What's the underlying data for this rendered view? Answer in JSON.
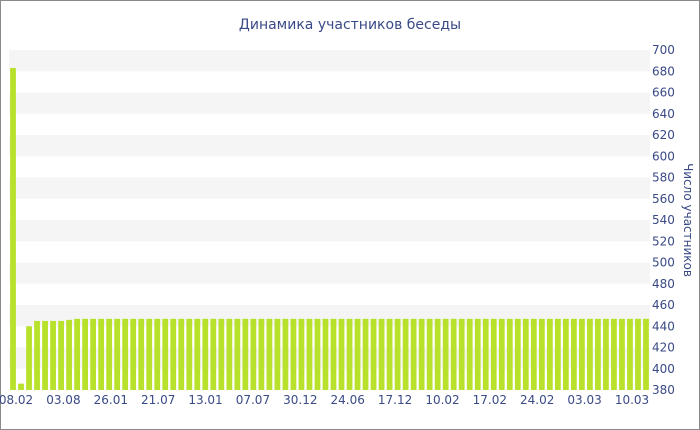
{
  "chart_data": {
    "type": "bar",
    "title": "Динамика участников беседы",
    "xlabel": "",
    "ylabel": "Число участников",
    "ylim": [
      380,
      700
    ],
    "yticks": [
      380,
      400,
      420,
      440,
      460,
      480,
      500,
      520,
      540,
      560,
      580,
      600,
      620,
      640,
      660,
      680,
      700
    ],
    "y_axis_position": "right",
    "grid": "horizontal alternating bands",
    "legend": "none",
    "bar_color": "#b7e12b",
    "band_color": "#f5f5f5",
    "x_tick_labels": [
      "08.02",
      "03.08",
      "26.01",
      "21.07",
      "13.01",
      "07.07",
      "30.12",
      "24.06",
      "17.12",
      "10.02",
      "17.02",
      "24.02",
      "03.03",
      "10.03"
    ],
    "values": [
      683,
      386,
      440,
      445,
      445,
      445,
      445,
      446,
      447,
      447,
      447,
      447,
      447,
      447,
      447,
      447,
      447,
      447,
      447,
      447,
      447,
      447,
      447,
      447,
      447,
      447,
      447,
      447,
      447,
      447,
      447,
      447,
      447,
      447,
      447,
      447,
      447,
      447,
      447,
      447,
      447,
      447,
      447,
      447,
      447,
      447,
      447,
      447,
      447,
      447,
      447,
      447,
      447,
      447,
      447,
      447,
      447,
      447,
      447,
      447,
      447,
      447,
      447,
      447,
      447,
      447,
      447,
      447,
      447,
      447,
      447,
      447,
      447,
      447,
      447,
      447,
      447,
      447,
      447,
      447
    ]
  }
}
